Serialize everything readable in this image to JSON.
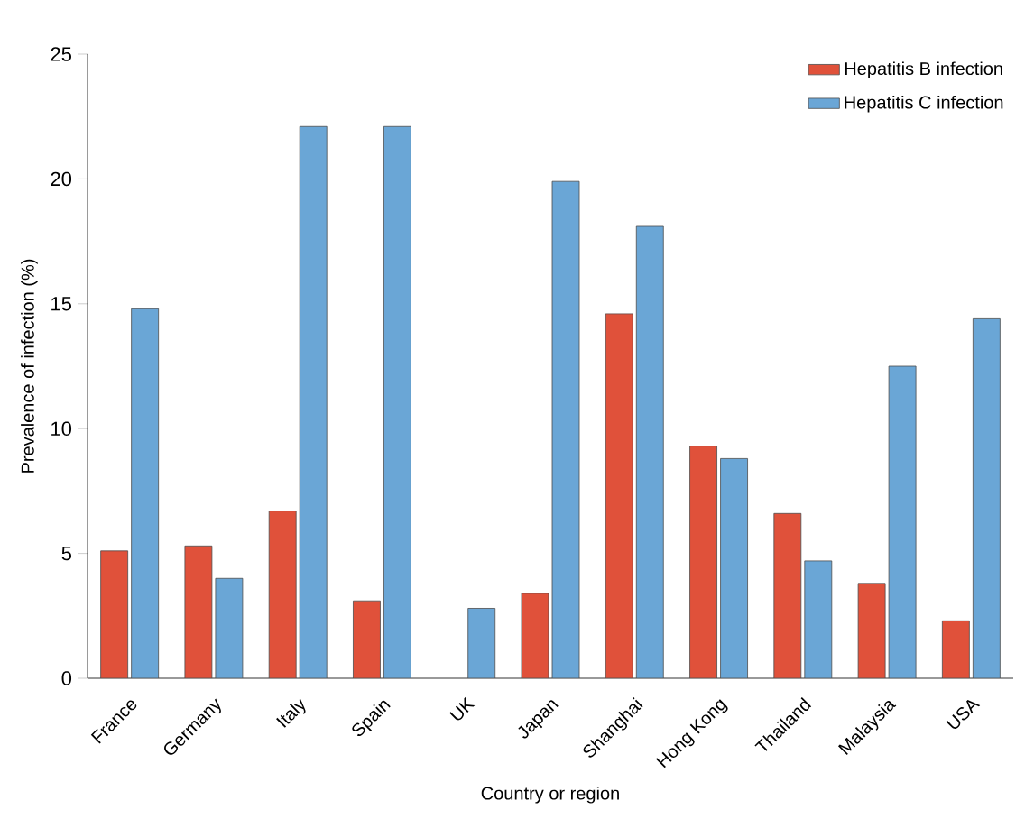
{
  "chart_data": {
    "type": "bar",
    "xlabel": "Country or region",
    "ylabel": "Prevalence of infection (%)",
    "categories": [
      "France",
      "Germany",
      "Italy",
      "Spain",
      "UK",
      "Japan",
      "Shanghai",
      "Hong Kong",
      "Thailand",
      "Malaysia",
      "USA"
    ],
    "series": [
      {
        "name": "Hepatitis B infection",
        "color": "#e0513a",
        "values": [
          5.1,
          5.3,
          6.7,
          3.1,
          null,
          3.4,
          14.6,
          9.3,
          6.6,
          3.8,
          2.3
        ]
      },
      {
        "name": "Hepatitis C infection",
        "color": "#6aa6d6",
        "values": [
          14.8,
          4.0,
          22.1,
          22.1,
          2.8,
          19.9,
          18.1,
          8.8,
          4.7,
          12.5,
          14.4
        ]
      }
    ],
    "ylim": [
      0,
      25
    ],
    "yticks": [
      0,
      5,
      10,
      15,
      20,
      25
    ],
    "legend": "top right",
    "grid": false
  }
}
